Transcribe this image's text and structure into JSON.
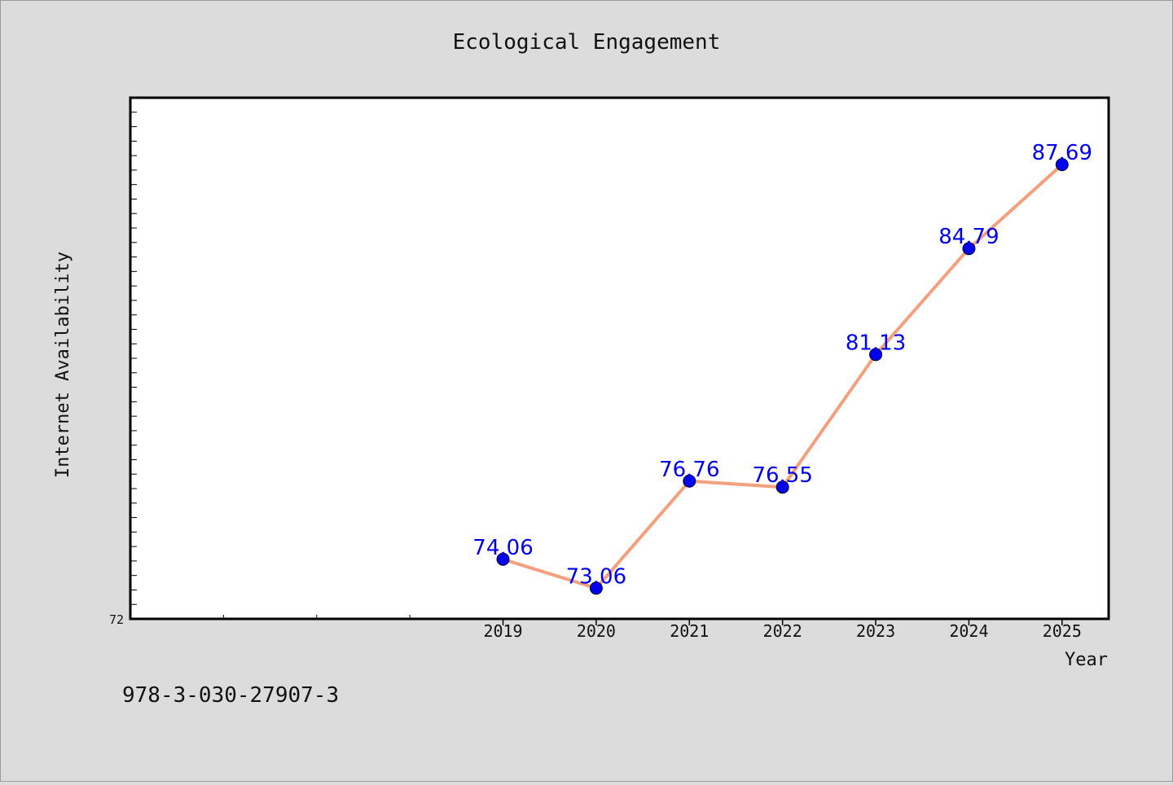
{
  "chart_data": {
    "type": "line",
    "title": "Ecological Engagement",
    "xlabel": "Year",
    "ylabel": "Internet Availability",
    "categories": [
      "2019",
      "2020",
      "2021",
      "2022",
      "2023",
      "2024",
      "2025"
    ],
    "values": [
      74.06,
      73.06,
      76.76,
      76.55,
      81.13,
      84.79,
      87.69
    ],
    "data_labels": [
      "74.06",
      "73.06",
      "76.76",
      "76.55",
      "81.13",
      "84.79",
      "87.69"
    ],
    "y_tick_labels": [
      "72"
    ],
    "ylim": [
      72,
      90
    ],
    "x_index_range": [
      -4,
      6.5
    ],
    "grid": false,
    "legend": "none",
    "colors": {
      "line": "#f4a07f",
      "marker": "#0000ee",
      "label": "#0000ee",
      "background": "#dcdcdc",
      "plot_background": "#ffffff"
    }
  },
  "footer": {
    "text": "978-3-030-27907-3"
  }
}
